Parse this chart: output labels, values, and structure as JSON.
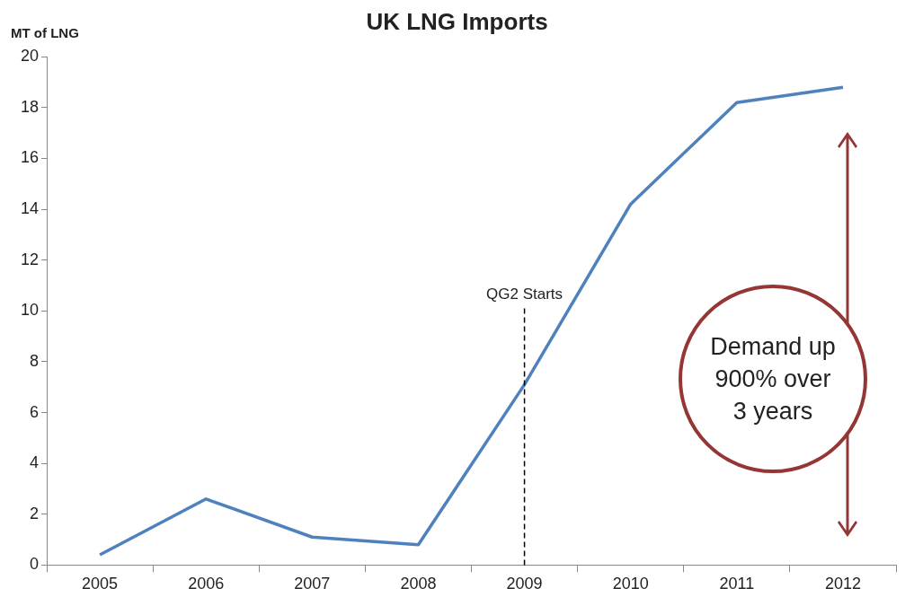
{
  "chart_data": {
    "type": "line",
    "title": "UK LNG Imports",
    "ylabel": "MT of LNG",
    "categories": [
      "2005",
      "2006",
      "2007",
      "2008",
      "2009",
      "2010",
      "2011",
      "2012"
    ],
    "series": [
      {
        "color": "#4f81bd",
        "values": [
          0.4,
          2.6,
          1.1,
          0.8,
          7.1,
          14.2,
          18.2,
          18.8
        ]
      }
    ],
    "ylim": [
      0,
      20
    ],
    "yticks": [
      0,
      2,
      4,
      6,
      8,
      10,
      12,
      14,
      16,
      18,
      20
    ],
    "grid": false,
    "legend": false,
    "marker": "none",
    "line_style": "solid",
    "ref_lines": [
      {
        "axis": "x",
        "value": "2009",
        "label": "QG2 Starts",
        "color": "#000000",
        "line_style": "dashed"
      }
    ],
    "annotations": [
      "Demand up 900% over 3 years"
    ]
  }
}
